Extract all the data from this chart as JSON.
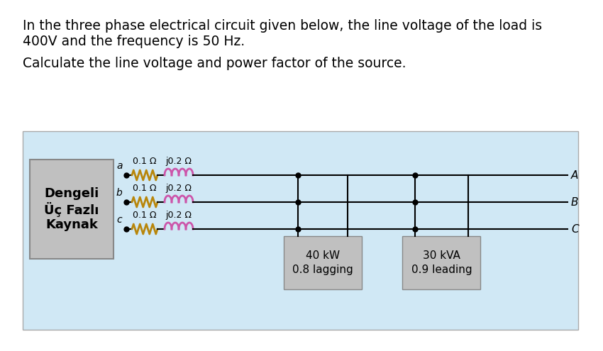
{
  "title_line1": "In the three phase electrical circuit given below, the line voltage of the load is",
  "title_line2": "400V and the frequency is 50 Hz.",
  "subtitle": "Calculate the line voltage and power factor of the source.",
  "bg_color": "#ffffff",
  "diagram_bg": "#d0e8f5",
  "source_box_bg": "#c0c0c0",
  "load_box_bg": "#c0c0c0",
  "source_label_line1": "Dengeli",
  "source_label_line2": "Üç Fazlı",
  "source_label_line3": "Kaynak",
  "phases": [
    "a",
    "b",
    "c"
  ],
  "resistor_label": "0.1 Ω",
  "inductor_label": "j0.2 Ω",
  "bus_labels": [
    "A",
    "B",
    "C"
  ],
  "load1_line1": "40 kW",
  "load1_line2": "0.8 lagging",
  "load2_line1": "30 kVA",
  "load2_line2": "0.9 leading",
  "resistor_color": "#b8860b",
  "inductor_color": "#cc55aa",
  "line_color": "#000000",
  "text_color": "#000000",
  "title_fontsize": 13.5,
  "subtitle_fontsize": 13.5
}
